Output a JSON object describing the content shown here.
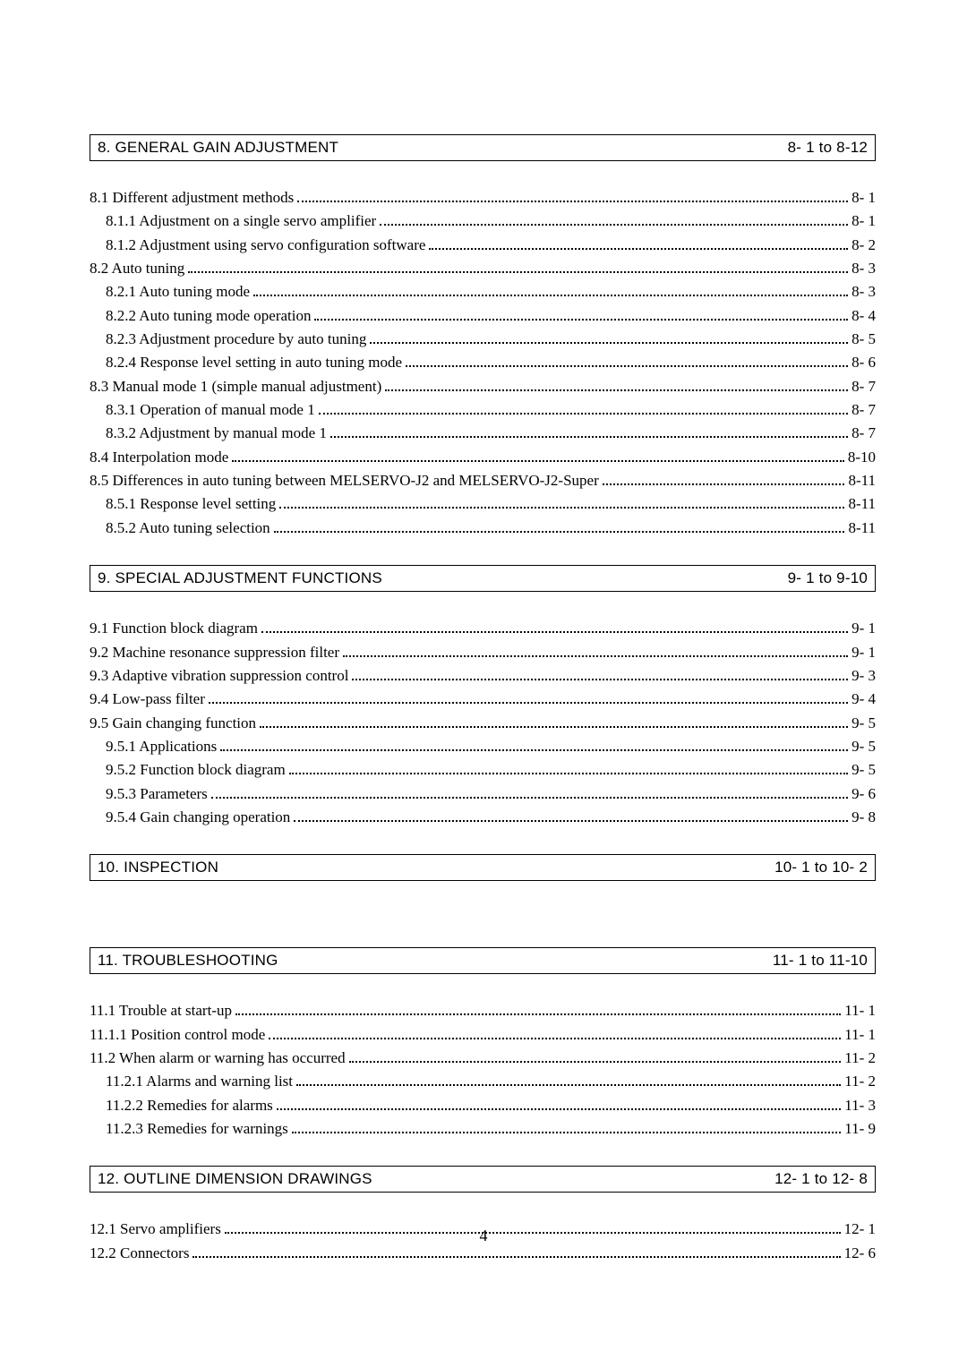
{
  "page_number": "4",
  "typography": {
    "body_font": "Times New Roman",
    "header_font": "Arial",
    "body_fontsize_pt": 13,
    "header_fontsize_pt": 13,
    "line_height": 1.55
  },
  "colors": {
    "background": "#ffffff",
    "text": "#000000",
    "border": "#000000",
    "dots": "#000000"
  },
  "sections": [
    {
      "title": "8. GENERAL GAIN ADJUSTMENT",
      "range": "8- 1 to 8-12",
      "entries": [
        {
          "indent": 0,
          "label": "8.1 Different adjustment methods",
          "page": "8- 1"
        },
        {
          "indent": 1,
          "label": "8.1.1 Adjustment on a single servo amplifier",
          "page": "8- 1"
        },
        {
          "indent": 1,
          "label": "8.1.2 Adjustment using servo configuration software",
          "page": "8- 2"
        },
        {
          "indent": 0,
          "label": "8.2 Auto tuning",
          "page": "8- 3"
        },
        {
          "indent": 1,
          "label": "8.2.1 Auto tuning mode",
          "page": "8- 3"
        },
        {
          "indent": 1,
          "label": "8.2.2 Auto tuning mode operation",
          "page": "8- 4"
        },
        {
          "indent": 1,
          "label": "8.2.3 Adjustment procedure by auto tuning",
          "page": "8- 5"
        },
        {
          "indent": 1,
          "label": "8.2.4 Response level setting in auto tuning mode",
          "page": "8- 6"
        },
        {
          "indent": 0,
          "label": "8.3 Manual mode 1 (simple manual adjustment)",
          "page": "8- 7"
        },
        {
          "indent": 1,
          "label": "8.3.1 Operation of manual mode 1",
          "page": "8- 7"
        },
        {
          "indent": 1,
          "label": "8.3.2 Adjustment by manual mode 1",
          "page": "8- 7"
        },
        {
          "indent": 0,
          "label": "8.4 Interpolation mode",
          "page": "8-10"
        },
        {
          "indent": 0,
          "label": "8.5 Differences in auto tuning between MELSERVO-J2 and MELSERVO-J2-Super",
          "page": "8-11"
        },
        {
          "indent": 1,
          "label": "8.5.1 Response level setting",
          "page": "8-11"
        },
        {
          "indent": 1,
          "label": "8.5.2 Auto tuning selection",
          "page": "8-11"
        }
      ]
    },
    {
      "title": "9. SPECIAL ADJUSTMENT FUNCTIONS",
      "range": "9- 1 to 9-10",
      "entries": [
        {
          "indent": 0,
          "label": "9.1 Function block diagram",
          "page": "9- 1"
        },
        {
          "indent": 0,
          "label": "9.2 Machine resonance suppression filter",
          "page": "9- 1"
        },
        {
          "indent": 0,
          "label": "9.3 Adaptive vibration suppression control",
          "page": "9- 3"
        },
        {
          "indent": 0,
          "label": "9.4 Low-pass filter",
          "page": "9- 4"
        },
        {
          "indent": 0,
          "label": "9.5 Gain changing function",
          "page": "9- 5"
        },
        {
          "indent": 1,
          "label": "9.5.1 Applications",
          "page": "9- 5"
        },
        {
          "indent": 1,
          "label": "9.5.2 Function block diagram",
          "page": "9- 5"
        },
        {
          "indent": 1,
          "label": "9.5.3 Parameters",
          "page": "9- 6"
        },
        {
          "indent": 1,
          "label": "9.5.4 Gain changing operation",
          "page": "9- 8"
        }
      ]
    },
    {
      "title": "10. INSPECTION",
      "range": "10- 1 to 10- 2",
      "entries": []
    },
    {
      "title": "11. TROUBLESHOOTING",
      "range": "11- 1 to 11-10",
      "entries": [
        {
          "indent": 0,
          "label": "11.1 Trouble at start-up",
          "page": "11- 1"
        },
        {
          "indent": 0,
          "label": "11.1.1 Position control mode",
          "page": "11- 1"
        },
        {
          "indent": 0,
          "label": "11.2 When alarm or warning has occurred",
          "page": "11- 2"
        },
        {
          "indent": 1,
          "label": "11.2.1 Alarms and warning list",
          "page": "11- 2"
        },
        {
          "indent": 1,
          "label": "11.2.2 Remedies for alarms",
          "page": "11- 3"
        },
        {
          "indent": 1,
          "label": "11.2.3 Remedies for warnings",
          "page": "11- 9"
        }
      ]
    },
    {
      "title": "12. OUTLINE DIMENSION DRAWINGS",
      "range": "12- 1 to 12- 8",
      "entries": [
        {
          "indent": 0,
          "label": "12.1 Servo amplifiers",
          "page": "12- 1"
        },
        {
          "indent": 0,
          "label": "12.2 Connectors",
          "page": "12- 6"
        }
      ]
    }
  ]
}
